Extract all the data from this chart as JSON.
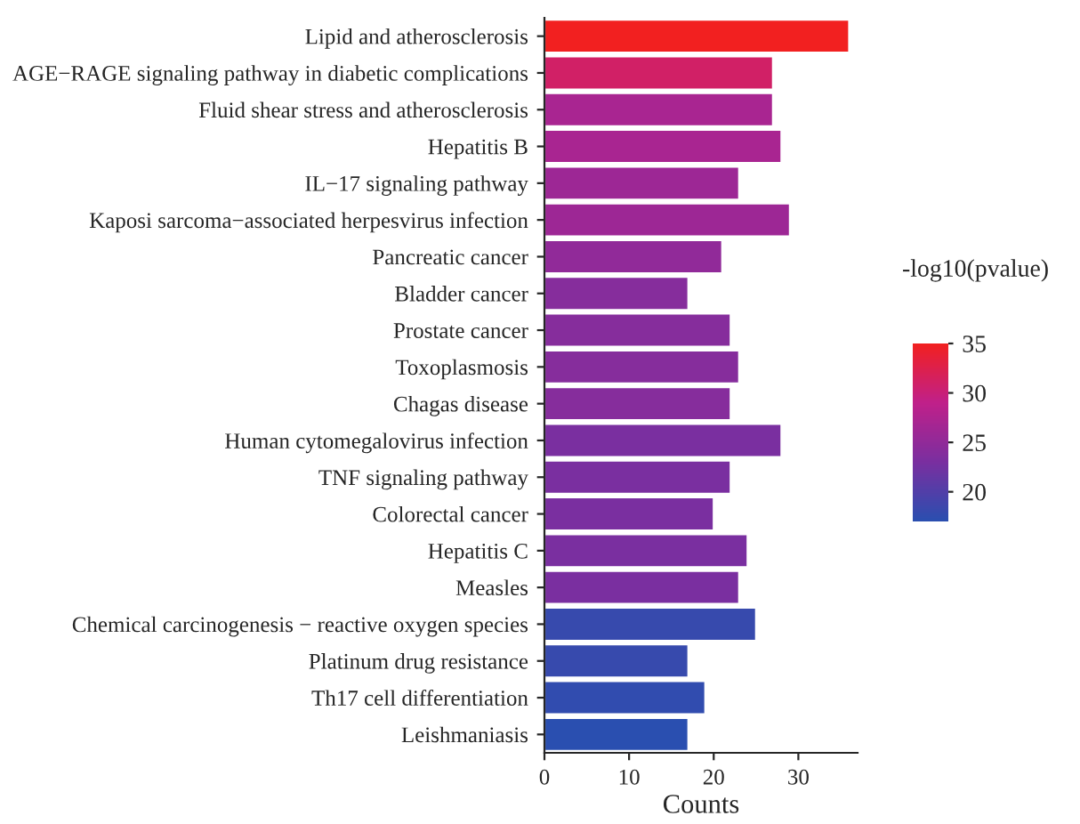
{
  "chart_data": {
    "type": "bar",
    "orientation": "horizontal",
    "xlabel": "Counts",
    "clabel": "-log10(pvalue)",
    "categories": [
      "Lipid and atherosclerosis",
      "AGE−RAGE signaling pathway in diabetic complications",
      "Fluid shear stress and atherosclerosis",
      "Hepatitis B",
      "IL−17 signaling pathway",
      "Kaposi sarcoma−associated herpesvirus infection",
      "Pancreatic cancer",
      "Bladder cancer",
      "Prostate cancer",
      "Toxoplasmosis",
      "Chagas disease",
      "Human cytomegalovirus infection",
      "TNF signaling pathway",
      "Colorectal cancer",
      "Hepatitis C",
      "Measles",
      "Chemical carcinogenesis − reactive oxygen species",
      "Platinum drug resistance",
      "Th17 cell differentiation",
      "Leishmaniasis"
    ],
    "values": [
      36,
      27,
      27,
      28,
      23,
      29,
      21,
      17,
      22,
      23,
      22,
      28,
      22,
      20,
      24,
      23,
      25,
      17,
      19,
      17
    ],
    "cvalues": [
      35,
      31,
      27,
      27,
      26,
      26,
      25,
      24,
      24,
      24,
      24,
      23,
      23,
      23,
      23,
      23,
      18,
      18,
      17.5,
      17
    ],
    "clim": [
      17,
      35
    ],
    "cticks": [
      20,
      25,
      30,
      35
    ],
    "xlim": [
      0,
      37
    ],
    "xticks": [
      0,
      10,
      20,
      30
    ]
  }
}
